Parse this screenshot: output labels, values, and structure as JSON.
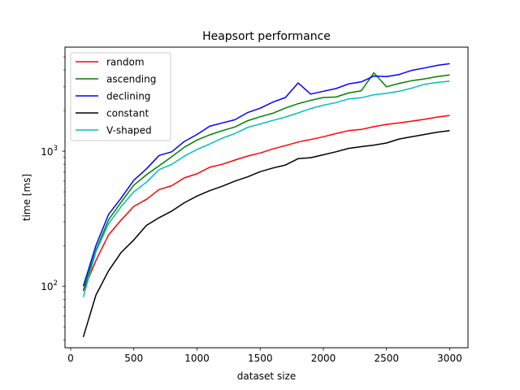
{
  "chart_data": {
    "type": "line",
    "title": "Heapsort performance",
    "xlabel": "dataset size",
    "ylabel": "time [ms]",
    "xscale": "linear",
    "yscale": "log",
    "xlim": [
      -45,
      3145
    ],
    "ylim": [
      35,
      5900
    ],
    "grid": false,
    "legend_position": "top-left",
    "x_ticks": [
      {
        "value": 0,
        "label": "0"
      },
      {
        "value": 500,
        "label": "500"
      },
      {
        "value": 1000,
        "label": "1000"
      },
      {
        "value": 1500,
        "label": "1500"
      },
      {
        "value": 2000,
        "label": "2000"
      },
      {
        "value": 2500,
        "label": "2500"
      },
      {
        "value": 3000,
        "label": "3000"
      }
    ],
    "y_ticks": [
      {
        "value": 100,
        "base": "10",
        "exp": "2"
      },
      {
        "value": 1000,
        "base": "10",
        "exp": "3"
      }
    ],
    "y_minor_ticks": [
      40,
      50,
      60,
      70,
      80,
      90,
      200,
      300,
      400,
      500,
      600,
      700,
      800,
      900,
      2000,
      3000,
      4000,
      5000
    ],
    "x": [
      100,
      200,
      300,
      400,
      500,
      600,
      700,
      800,
      900,
      1000,
      1100,
      1200,
      1300,
      1400,
      1500,
      1600,
      1700,
      1800,
      1900,
      2000,
      2100,
      2200,
      2300,
      2400,
      2500,
      2600,
      2700,
      2800,
      2900,
      3000
    ],
    "series": [
      {
        "name": "random",
        "color": "#ff0000",
        "values": [
          92,
          155,
          240,
          310,
          390,
          440,
          520,
          555,
          635,
          680,
          760,
          800,
          860,
          920,
          970,
          1040,
          1100,
          1170,
          1220,
          1280,
          1350,
          1420,
          1450,
          1520,
          1580,
          1620,
          1670,
          1720,
          1790,
          1840
        ]
      },
      {
        "name": "ascending",
        "color": "#008000",
        "values": [
          93,
          185,
          310,
          420,
          560,
          670,
          780,
          910,
          1070,
          1210,
          1320,
          1420,
          1510,
          1680,
          1800,
          1910,
          2090,
          2250,
          2380,
          2500,
          2520,
          2700,
          2800,
          3800,
          3000,
          3180,
          3330,
          3430,
          3570,
          3670
        ]
      },
      {
        "name": "declining",
        "color": "#0000ff",
        "values": [
          100,
          200,
          340,
          450,
          610,
          740,
          930,
          990,
          1180,
          1330,
          1530,
          1620,
          1710,
          1930,
          2080,
          2310,
          2500,
          3200,
          2650,
          2780,
          2910,
          3150,
          3260,
          3600,
          3570,
          3700,
          3970,
          4130,
          4320,
          4450
        ]
      },
      {
        "name": "constant",
        "color": "#000000",
        "values": [
          42,
          86,
          130,
          178,
          220,
          282,
          322,
          360,
          415,
          465,
          510,
          550,
          600,
          645,
          705,
          750,
          790,
          880,
          895,
          940,
          990,
          1050,
          1080,
          1110,
          1150,
          1230,
          1280,
          1330,
          1380,
          1420
        ]
      },
      {
        "name": "V-shaped",
        "color": "#00bfbf",
        "values": [
          83,
          180,
          290,
          390,
          500,
          590,
          730,
          800,
          920,
          1030,
          1130,
          1250,
          1350,
          1500,
          1590,
          1690,
          1790,
          1920,
          2070,
          2190,
          2290,
          2440,
          2490,
          2620,
          2680,
          2780,
          2930,
          3130,
          3230,
          3300
        ]
      }
    ]
  }
}
